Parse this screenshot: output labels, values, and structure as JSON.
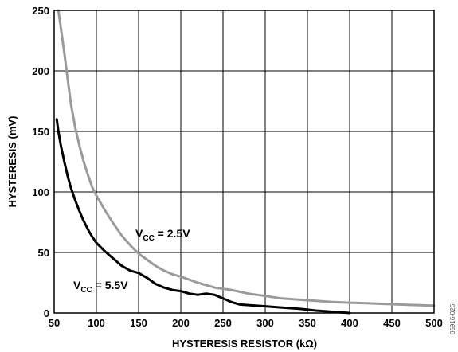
{
  "chart_data": {
    "type": "line",
    "xlabel": "HYSTERESIS RESISTOR (kΩ)",
    "ylabel": "HYSTERESIS (mV)",
    "xlim": [
      50,
      500
    ],
    "ylim": [
      0,
      250
    ],
    "xticks": [
      "50",
      "100",
      "150",
      "200",
      "250",
      "300",
      "350",
      "400",
      "450",
      "500"
    ],
    "yticks": [
      "0",
      "50",
      "100",
      "150",
      "200",
      "250"
    ],
    "grid": true,
    "series": [
      {
        "name_main": "V",
        "name_sub": "CC",
        "name_rest": " = 2.5V",
        "color": "#9a9a9a",
        "x": [
          55,
          58,
          62,
          66,
          70,
          75,
          80,
          85,
          90,
          95,
          100,
          110,
          120,
          130,
          140,
          150,
          160,
          170,
          180,
          190,
          200,
          220,
          240,
          260,
          280,
          300,
          320,
          340,
          360,
          380,
          400,
          420,
          440,
          460,
          480,
          500
        ],
        "y": [
          250,
          235,
          215,
          193,
          172,
          153,
          138,
          125,
          114,
          104,
          97,
          85,
          74,
          64,
          56,
          49,
          44,
          39,
          35,
          32,
          30,
          25,
          21,
          19,
          16,
          14,
          12,
          11,
          10,
          9,
          8.5,
          8,
          7.5,
          7,
          6.5,
          6
        ]
      },
      {
        "name_main": "V",
        "name_sub": "CC",
        "name_rest": " = 5.5V",
        "color": "#000000",
        "x": [
          53,
          55,
          58,
          62,
          66,
          70,
          75,
          80,
          85,
          90,
          95,
          100,
          110,
          120,
          130,
          140,
          150,
          160,
          170,
          180,
          190,
          200,
          210,
          220,
          230,
          240,
          250,
          260,
          270,
          280,
          300,
          320,
          340,
          360,
          380,
          400
        ],
        "y": [
          160,
          150,
          138,
          125,
          113,
          103,
          93,
          84,
          76,
          69,
          63,
          58,
          51,
          45,
          39,
          35,
          33,
          29,
          24,
          21,
          19,
          18,
          16,
          15,
          16,
          15,
          12,
          9,
          7,
          6.5,
          5.5,
          4.5,
          3.5,
          2,
          1,
          0
        ]
      }
    ],
    "annotations": {
      "vcc25": {
        "main": "V",
        "sub": "CC",
        "rest": " = 2.5V"
      },
      "vcc55": {
        "main": "V",
        "sub": "CC",
        "rest": " = 5.5V"
      }
    },
    "figure_code": "05916-026"
  }
}
